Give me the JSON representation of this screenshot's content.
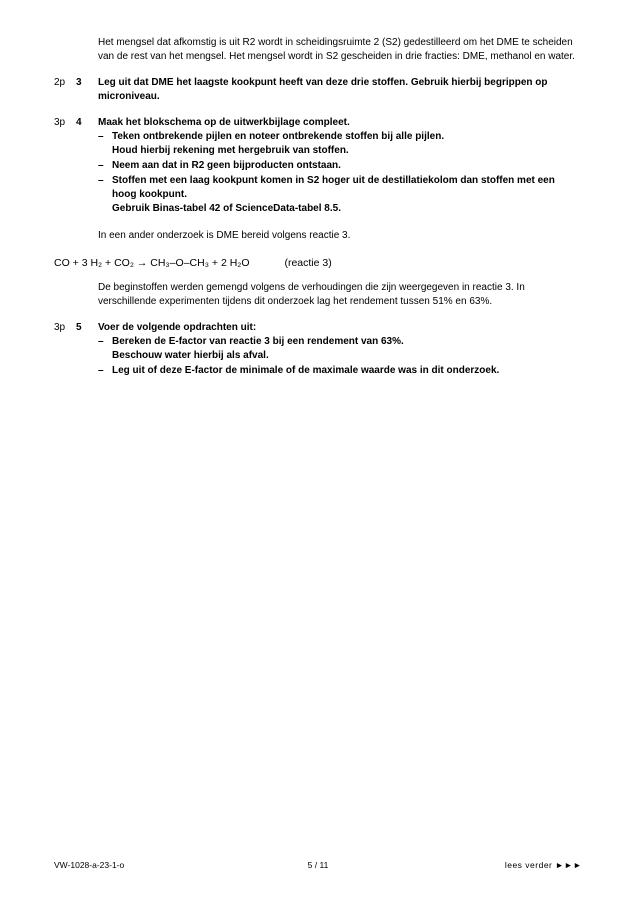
{
  "intro": {
    "p1": "Het mengsel dat afkomstig is uit R2 wordt in scheidingsruimte 2 (S2) gedestilleerd om het DME te scheiden van de rest van het mengsel. Het mengsel wordt in S2 gescheiden in drie fracties: DME, methanol en water."
  },
  "q3": {
    "marker": "2p",
    "num": "3",
    "text": "Leg uit dat DME het laagste kookpunt heeft van deze drie stoffen. Gebruik hierbij begrippen op microniveau."
  },
  "q4": {
    "marker": "3p",
    "num": "4",
    "lead": "Maak het blokschema op de uitwerkbijlage compleet.",
    "b1a": "Teken ontbrekende pijlen en noteer ontbrekende stoffen bij alle pijlen.",
    "b1b": "Houd hierbij rekening met hergebruik van stoffen.",
    "b2": "Neem aan dat in R2 geen bijproducten ontstaan.",
    "b3a": "Stoffen met een laag kookpunt komen in S2 hoger uit de destillatiekolom dan stoffen met een hoog kookpunt.",
    "b3b": "Gebruik Binas-tabel 42 of ScienceData-tabel 8.5."
  },
  "mid": {
    "p1": "In een ander onderzoek is DME bereid volgens reactie 3.",
    "eq": "CO  +  3 H₂  +  CO₂   →   CH₃–O–CH₃  +  2 H₂O",
    "eq_label": "(reactie 3)",
    "p2": "De beginstoffen werden gemengd volgens de verhoudingen die zijn weergegeven in reactie 3. In verschillende experimenten tijdens dit onderzoek lag het rendement tussen 51% en 63%."
  },
  "q5": {
    "marker": "3p",
    "num": "5",
    "lead": "Voer de volgende opdrachten uit:",
    "b1a": "Bereken de E-factor van reactie 3 bij een rendement van 63%.",
    "b1b": "Beschouw water hierbij als afval.",
    "b2": "Leg uit of deze E-factor de minimale of de maximale waarde was in dit onderzoek."
  },
  "footer": {
    "left": "VW-1028-a-23-1-o",
    "center": "5 / 11",
    "right": "lees verder ►►►"
  }
}
